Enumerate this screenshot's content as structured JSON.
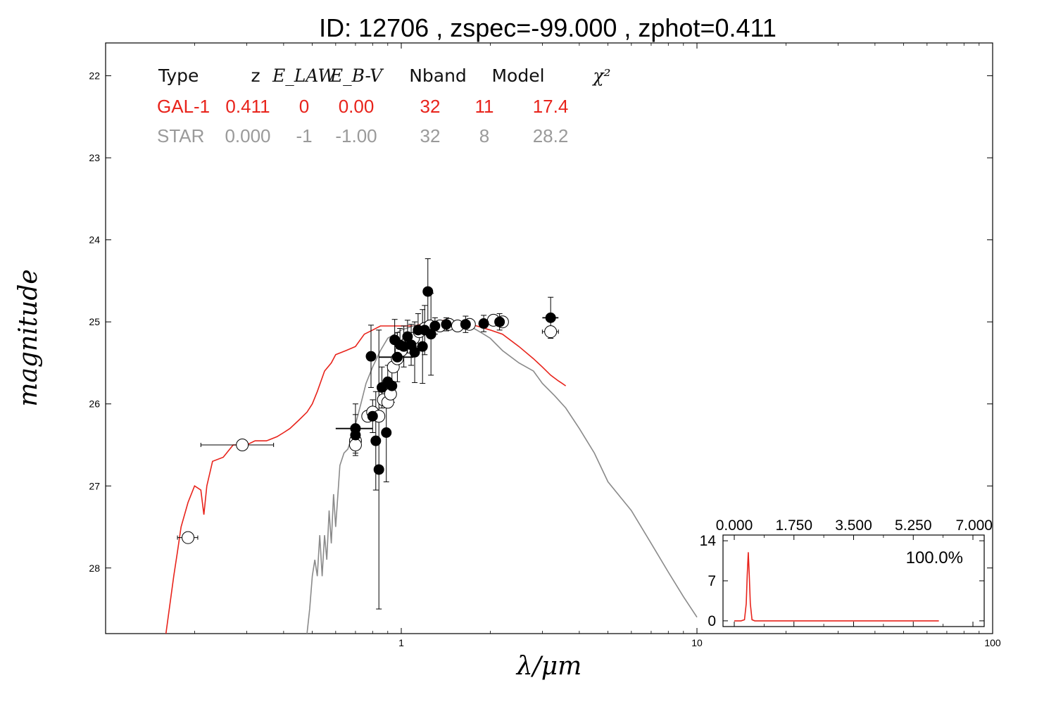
{
  "chart_data": [
    {
      "type": "scatter",
      "title": "ID:  12706 , zspec=-99.000 , zphot=0.411",
      "xlabel": "λ/μm",
      "ylabel": "magnitude",
      "xscale": "log",
      "xlim": [
        0.1,
        100
      ],
      "ylim": [
        28.8,
        21.6
      ],
      "y_inverted": true,
      "grid": false,
      "x_ticks": [
        1,
        10,
        100
      ],
      "x_tick_labels": [
        "1",
        "10",
        "100"
      ],
      "y_ticks": [
        22,
        23,
        24,
        25,
        26,
        27,
        28
      ],
      "y_tick_labels": [
        "22",
        "23",
        "24",
        "25",
        "26",
        "27",
        "28"
      ],
      "fit_table": {
        "headers": [
          "Type",
          "z",
          "E_LAW",
          "E_B-V",
          "Nband",
          "Model",
          "χ²"
        ],
        "rows": [
          {
            "type": "GAL-1",
            "z": "0.411",
            "elaw": "0",
            "ebv": "0.00",
            "nband": "32",
            "model": "11",
            "chi2": "17.4",
            "color": "#e8231b"
          },
          {
            "type": "STAR",
            "z": "0.000",
            "elaw": "-1",
            "ebv": "-1.00",
            "nband": "32",
            "model": "8",
            "chi2": "28.2",
            "color": "#9a9a9a"
          }
        ]
      },
      "series": [
        {
          "name": "GAL-1",
          "role": "best-fit galaxy template",
          "color": "#e8231b",
          "x": [
            0.16,
            0.17,
            0.175,
            0.18,
            0.19,
            0.2,
            0.21,
            0.215,
            0.22,
            0.23,
            0.25,
            0.27,
            0.3,
            0.32,
            0.35,
            0.38,
            0.4,
            0.42,
            0.45,
            0.48,
            0.5,
            0.52,
            0.55,
            0.58,
            0.6,
            0.65,
            0.7,
            0.75,
            0.8,
            0.85,
            0.9,
            1.0,
            1.1,
            1.2,
            1.3,
            1.4,
            1.5,
            1.6,
            1.8,
            2.0,
            2.2,
            2.5,
            2.8,
            3.0,
            3.2,
            3.4,
            3.5,
            3.6
          ],
          "y": [
            28.8,
            28.1,
            27.8,
            27.5,
            27.2,
            27.0,
            27.05,
            27.35,
            27.0,
            26.7,
            26.65,
            26.5,
            26.5,
            26.45,
            26.45,
            26.4,
            26.35,
            26.3,
            26.2,
            26.1,
            26.0,
            25.85,
            25.6,
            25.5,
            25.4,
            25.35,
            25.3,
            25.15,
            25.1,
            25.05,
            25.05,
            25.05,
            25.05,
            25.02,
            25.0,
            24.98,
            25.0,
            25.02,
            25.05,
            25.1,
            25.15,
            25.3,
            25.45,
            25.55,
            25.65,
            25.72,
            25.75,
            25.78
          ]
        },
        {
          "name": "STAR",
          "role": "best-fit stellar template",
          "color": "#8a8a8a",
          "x": [
            0.48,
            0.49,
            0.5,
            0.51,
            0.52,
            0.53,
            0.54,
            0.55,
            0.56,
            0.57,
            0.58,
            0.59,
            0.6,
            0.62,
            0.64,
            0.66,
            0.68,
            0.7,
            0.73,
            0.76,
            0.8,
            0.85,
            0.9,
            1.0,
            1.1,
            1.2,
            1.3,
            1.4,
            1.5,
            1.6,
            1.7,
            1.8,
            1.9,
            2.0,
            2.2,
            2.5,
            2.8,
            3.0,
            3.3,
            3.6,
            4.0,
            4.5,
            5.0,
            6.0,
            7.0,
            8.0,
            9.0,
            10.0
          ],
          "y": [
            28.8,
            28.5,
            28.1,
            27.9,
            28.1,
            27.6,
            28.1,
            27.6,
            27.9,
            27.3,
            27.7,
            27.1,
            27.5,
            26.75,
            26.6,
            26.55,
            26.4,
            26.25,
            26.0,
            25.75,
            25.55,
            25.35,
            25.2,
            25.1,
            25.05,
            25.03,
            25.0,
            25.0,
            25.0,
            25.02,
            25.05,
            25.1,
            25.15,
            25.2,
            25.35,
            25.5,
            25.6,
            25.75,
            25.9,
            26.05,
            26.3,
            26.6,
            26.95,
            27.3,
            27.7,
            28.05,
            28.35,
            28.6
          ]
        },
        {
          "name": "observed",
          "role": "observed photometry (filled circles with error bars)",
          "color": "#000000",
          "points": [
            {
              "x": 0.7,
              "y": 26.3,
              "yerr": 0.3,
              "xerr": 0.1
            },
            {
              "x": 0.7,
              "y": 26.38,
              "yerr": 0.25,
              "xerr": 0.0
            },
            {
              "x": 0.79,
              "y": 25.42,
              "yerr": 0.38,
              "xerr": 0.0
            },
            {
              "x": 0.8,
              "y": 26.15,
              "yerr": 0.2,
              "xerr": 0.0
            },
            {
              "x": 0.82,
              "y": 26.45,
              "yerr": 0.6,
              "xerr": 0.0
            },
            {
              "x": 0.84,
              "y": 26.8,
              "yerr": 1.7,
              "xerr": 0.0
            },
            {
              "x": 0.86,
              "y": 25.8,
              "yerr": 0.25,
              "xerr": 0.0
            },
            {
              "x": 0.89,
              "y": 26.35,
              "yerr": 0.6,
              "xerr": 0.0
            },
            {
              "x": 0.9,
              "y": 25.73,
              "yerr": 0.2,
              "xerr": 0.0
            },
            {
              "x": 0.93,
              "y": 25.78,
              "yerr": 0.2,
              "xerr": 0.0
            },
            {
              "x": 0.95,
              "y": 25.22,
              "yerr": 0.25,
              "xerr": 0.0
            },
            {
              "x": 0.97,
              "y": 25.43,
              "yerr": 0.3,
              "xerr": 0.13
            },
            {
              "x": 0.99,
              "y": 25.28,
              "yerr": 0.2,
              "xerr": 0.0
            },
            {
              "x": 1.02,
              "y": 25.3,
              "yerr": 0.25,
              "xerr": 0.0
            },
            {
              "x": 1.05,
              "y": 25.18,
              "yerr": 0.2,
              "xerr": 0.0
            },
            {
              "x": 1.08,
              "y": 25.28,
              "yerr": 0.25,
              "xerr": 0.0
            },
            {
              "x": 1.11,
              "y": 25.37,
              "yerr": 0.37,
              "xerr": 0.0
            },
            {
              "x": 1.14,
              "y": 25.1,
              "yerr": 0.2,
              "xerr": 0.0
            },
            {
              "x": 1.18,
              "y": 25.3,
              "yerr": 0.45,
              "xerr": 0.0
            },
            {
              "x": 1.2,
              "y": 25.1,
              "yerr": 0.3,
              "xerr": 0.0
            },
            {
              "x": 1.23,
              "y": 24.63,
              "yerr": 0.4,
              "xerr": 0.0
            },
            {
              "x": 1.26,
              "y": 25.15,
              "yerr": 0.5,
              "xerr": 0.0
            },
            {
              "x": 1.3,
              "y": 25.05,
              "yerr": 0.1,
              "xerr": 0.0
            },
            {
              "x": 1.42,
              "y": 25.03,
              "yerr": 0.08,
              "xerr": 0.0
            },
            {
              "x": 1.65,
              "y": 25.03,
              "yerr": 0.1,
              "xerr": 0.0
            },
            {
              "x": 1.9,
              "y": 25.02,
              "yerr": 0.1,
              "xerr": 0.0
            },
            {
              "x": 2.15,
              "y": 25.0,
              "yerr": 0.1,
              "xerr": 0.0
            },
            {
              "x": 3.2,
              "y": 24.95,
              "yerr": 0.25,
              "xerr": 0.2
            }
          ]
        },
        {
          "name": "model",
          "role": "model magnitudes (open circles)",
          "color": "#ffffff",
          "points": [
            {
              "x": 0.19,
              "y": 27.63,
              "xerr": 0.015
            },
            {
              "x": 0.29,
              "y": 26.5,
              "xerr": 0.08
            },
            {
              "x": 0.7,
              "y": 26.45,
              "xerr": 0.0
            },
            {
              "x": 0.7,
              "y": 26.5,
              "xerr": 0.0
            },
            {
              "x": 0.77,
              "y": 26.15,
              "xerr": 0.0
            },
            {
              "x": 0.8,
              "y": 26.1,
              "xerr": 0.0
            },
            {
              "x": 0.84,
              "y": 26.15,
              "xerr": 0.0
            },
            {
              "x": 0.87,
              "y": 25.95,
              "xerr": 0.0
            },
            {
              "x": 0.9,
              "y": 25.98,
              "xerr": 0.0
            },
            {
              "x": 0.92,
              "y": 25.88,
              "xerr": 0.0
            },
            {
              "x": 0.94,
              "y": 25.55,
              "xerr": 0.0
            },
            {
              "x": 0.97,
              "y": 25.45,
              "xerr": 0.0
            },
            {
              "x": 1.0,
              "y": 25.35,
              "xerr": 0.0
            },
            {
              "x": 1.05,
              "y": 25.25,
              "xerr": 0.0
            },
            {
              "x": 1.1,
              "y": 25.2,
              "xerr": 0.0
            },
            {
              "x": 1.15,
              "y": 25.12,
              "xerr": 0.0
            },
            {
              "x": 1.2,
              "y": 25.08,
              "xerr": 0.0
            },
            {
              "x": 1.25,
              "y": 25.05,
              "xerr": 0.0
            },
            {
              "x": 1.35,
              "y": 25.05,
              "xerr": 0.0
            },
            {
              "x": 1.45,
              "y": 25.03,
              "xerr": 0.0
            },
            {
              "x": 1.55,
              "y": 25.05,
              "xerr": 0.0
            },
            {
              "x": 1.7,
              "y": 25.03,
              "xerr": 0.0
            },
            {
              "x": 2.05,
              "y": 24.98,
              "xerr": 0.0
            },
            {
              "x": 2.2,
              "y": 25.0,
              "xerr": 0.0
            },
            {
              "x": 3.2,
              "y": 25.12,
              "xerr": 0.2
            }
          ]
        }
      ]
    },
    {
      "type": "line",
      "title": "",
      "xlim": [
        0,
        7
      ],
      "ylim": [
        -1,
        15
      ],
      "x_ticks": [
        0,
        1.75,
        3.5,
        5.25,
        7
      ],
      "x_tick_labels": [
        "0.000",
        "1.750",
        "3.500",
        "5.250",
        "7.000"
      ],
      "x_axis_position": "top",
      "y_ticks": [
        0,
        7,
        14
      ],
      "y_tick_labels": [
        "0",
        "7",
        "14"
      ],
      "annotation": "100.0%",
      "series": [
        {
          "name": "P(z)",
          "color": "#e8231b",
          "x": [
            0.0,
            0.2,
            0.3,
            0.35,
            0.38,
            0.411,
            0.44,
            0.47,
            0.52,
            0.6,
            1.0,
            3.0,
            5.0,
            6.0
          ],
          "y": [
            0.0,
            0.0,
            0.2,
            3.0,
            8.0,
            12.0,
            8.0,
            3.0,
            0.2,
            0.0,
            0.0,
            0.0,
            0.0,
            0.0
          ]
        }
      ]
    }
  ]
}
